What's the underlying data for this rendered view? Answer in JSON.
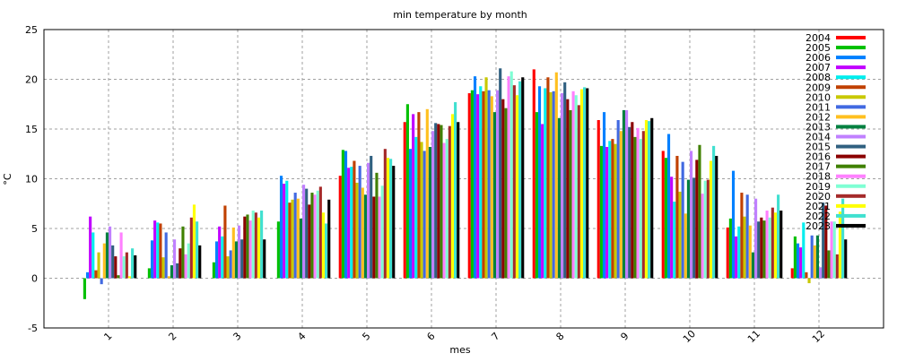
{
  "chart_data": {
    "type": "bar",
    "title": "min temperature by month",
    "xlabel": "mes",
    "ylabel": "°C",
    "ylim": [
      -5,
      25
    ],
    "yticks": [
      -5,
      0,
      5,
      10,
      15,
      20,
      25
    ],
    "xlim": [
      0,
      13
    ],
    "grid": true,
    "legend_position": "top-right",
    "categories": [
      "1",
      "2",
      "3",
      "4",
      "5",
      "6",
      "7",
      "8",
      "9",
      "10",
      "11",
      "12"
    ],
    "series": [
      {
        "name": "2004",
        "color": "#ff0000",
        "values": [
          null,
          null,
          null,
          null,
          10.3,
          15.7,
          18.6,
          21.0,
          15.9,
          12.8,
          5.1,
          1.0
        ]
      },
      {
        "name": "2005",
        "color": "#00c000",
        "values": [
          -2.1,
          1.0,
          1.6,
          5.7,
          12.9,
          17.5,
          18.9,
          16.7,
          13.3,
          12.1,
          6.0,
          4.2
        ]
      },
      {
        "name": "2006",
        "color": "#0080ff",
        "values": [
          0.6,
          3.8,
          3.7,
          10.3,
          12.8,
          13.0,
          20.3,
          19.3,
          16.7,
          14.5,
          10.8,
          3.5
        ]
      },
      {
        "name": "2007",
        "color": "#c000ff",
        "values": [
          6.2,
          5.8,
          5.2,
          9.5,
          11.1,
          16.5,
          18.5,
          15.5,
          13.2,
          10.2,
          4.2,
          3.1
        ]
      },
      {
        "name": "2008",
        "color": "#00eeee",
        "values": [
          4.6,
          5.6,
          4.2,
          9.8,
          11.2,
          14.2,
          19.3,
          19.1,
          13.8,
          7.7,
          5.2,
          5.6
        ]
      },
      {
        "name": "2009",
        "color": "#c04000",
        "values": [
          0.8,
          5.5,
          7.3,
          7.6,
          11.8,
          16.7,
          18.8,
          20.2,
          14.0,
          12.3,
          8.6,
          0.6
        ]
      },
      {
        "name": "2010",
        "color": "#c8c800",
        "values": [
          2.6,
          2.1,
          2.2,
          7.9,
          9.6,
          13.7,
          20.2,
          18.7,
          13.5,
          8.7,
          6.2,
          -0.5
        ]
      },
      {
        "name": "2011",
        "color": "#4169e1",
        "values": [
          -0.6,
          4.6,
          2.8,
          8.6,
          11.3,
          12.8,
          18.9,
          18.8,
          15.9,
          11.7,
          8.4,
          4.3
        ]
      },
      {
        "name": "2012",
        "color": "#ffc020",
        "values": [
          3.5,
          0.2,
          5.1,
          8.0,
          9.1,
          17.0,
          18.3,
          20.7,
          14.8,
          6.5,
          5.3,
          3.3
        ]
      },
      {
        "name": "2013",
        "color": "#008040",
        "values": [
          4.6,
          1.3,
          3.7,
          6.0,
          8.4,
          13.2,
          16.7,
          16.1,
          16.9,
          9.9,
          2.6,
          4.3
        ]
      },
      {
        "name": "2014",
        "color": "#c080ff",
        "values": [
          5.2,
          3.9,
          5.3,
          9.4,
          11.6,
          14.8,
          18.9,
          18.6,
          16.9,
          12.8,
          8.0,
          1.1
        ]
      },
      {
        "name": "2015",
        "color": "#306080",
        "values": [
          3.3,
          1.5,
          3.9,
          9.0,
          12.3,
          15.6,
          21.1,
          19.7,
          15.2,
          10.1,
          5.7,
          7.6
        ]
      },
      {
        "name": "2016",
        "color": "#8b0000",
        "values": [
          2.2,
          3.0,
          6.2,
          7.4,
          8.2,
          15.5,
          18.0,
          18.0,
          15.7,
          11.9,
          6.1,
          7.3
        ]
      },
      {
        "name": "2017",
        "color": "#408000",
        "values": [
          0.3,
          5.2,
          6.4,
          8.6,
          10.6,
          15.4,
          17.1,
          16.9,
          14.2,
          13.4,
          5.8,
          2.8
        ]
      },
      {
        "name": "2018",
        "color": "#ff80ff",
        "values": [
          4.6,
          2.4,
          5.8,
          8.4,
          8.2,
          13.6,
          20.3,
          18.8,
          15.1,
          8.5,
          6.8,
          5.7
        ]
      },
      {
        "name": "2019",
        "color": "#7fffd4",
        "values": [
          2.2,
          3.5,
          6.8,
          8.8,
          9.3,
          14.0,
          20.8,
          18.4,
          14.0,
          9.8,
          6.1,
          5.7
        ]
      },
      {
        "name": "2020",
        "color": "#a52a2a",
        "values": [
          2.6,
          6.1,
          6.6,
          9.2,
          13.0,
          15.3,
          19.4,
          17.4,
          14.8,
          9.9,
          7.1,
          2.4
        ]
      },
      {
        "name": "2021",
        "color": "#ffff00",
        "values": [
          0.2,
          7.4,
          6.1,
          6.6,
          12.1,
          16.5,
          18.4,
          19.0,
          15.9,
          11.8,
          6.6,
          6.7
        ]
      },
      {
        "name": "2022",
        "color": "#40e0d0",
        "values": [
          3.0,
          5.7,
          6.8,
          5.5,
          12.0,
          17.7,
          19.8,
          19.2,
          15.8,
          13.3,
          8.4,
          8.0
        ]
      },
      {
        "name": "2023",
        "color": "#000000",
        "values": [
          2.3,
          3.3,
          3.9,
          7.9,
          11.3,
          15.7,
          20.2,
          19.1,
          16.1,
          12.3,
          6.8,
          3.9
        ]
      }
    ]
  }
}
